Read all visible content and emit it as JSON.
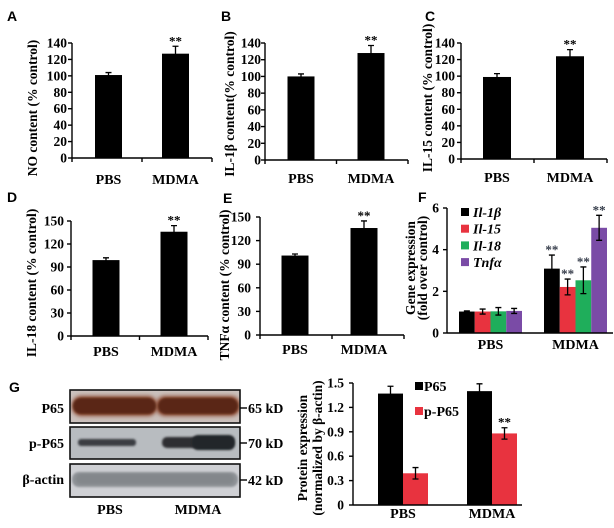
{
  "chart_data": [
    {
      "panel": "A",
      "type": "bar",
      "categories": [
        "PBS",
        "MDMA"
      ],
      "values": [
        101,
        127
      ],
      "errors": [
        3,
        9
      ],
      "significance": [
        "",
        "**"
      ],
      "color": "#000000",
      "ylabel": "NO content (% control)",
      "xlabel": "",
      "ylim": [
        0,
        140
      ],
      "yticks": [
        0,
        20,
        40,
        60,
        80,
        100,
        120,
        140
      ]
    },
    {
      "panel": "B",
      "type": "bar",
      "categories": [
        "PBS",
        "MDMA"
      ],
      "values": [
        100,
        128
      ],
      "errors": [
        3,
        9
      ],
      "significance": [
        "",
        "**"
      ],
      "color": "#000000",
      "ylabel": "IL-1β content(% control)",
      "xlabel": "",
      "ylim": [
        0,
        140
      ],
      "yticks": [
        0,
        20,
        40,
        60,
        80,
        100,
        120,
        140
      ]
    },
    {
      "panel": "C",
      "type": "bar",
      "categories": [
        "PBS",
        "MDMA"
      ],
      "values": [
        99,
        124
      ],
      "errors": [
        4,
        8
      ],
      "significance": [
        "",
        "**"
      ],
      "color": "#000000",
      "ylabel": "IL-15 content (% control)",
      "xlabel": "",
      "ylim": [
        0,
        140
      ],
      "yticks": [
        0,
        20,
        40,
        60,
        80,
        100,
        120,
        140
      ]
    },
    {
      "panel": "D",
      "type": "bar",
      "categories": [
        "PBS",
        "MDMA"
      ],
      "values": [
        99,
        136
      ],
      "errors": [
        3,
        8
      ],
      "significance": [
        "",
        "**"
      ],
      "color": "#000000",
      "ylabel": "IL-18 content (% control)",
      "xlabel": "",
      "ylim": [
        0,
        150
      ],
      "yticks": [
        0,
        30,
        60,
        90,
        120,
        150
      ]
    },
    {
      "panel": "E",
      "type": "bar",
      "categories": [
        "PBS",
        "MDMA"
      ],
      "values": [
        101,
        136
      ],
      "errors": [
        2,
        9
      ],
      "significance": [
        "",
        "**"
      ],
      "color": "#000000",
      "ylabel": "TNFα content (% control)",
      "xlabel": "",
      "ylim": [
        0,
        150
      ],
      "yticks": [
        0,
        30,
        60,
        90,
        120,
        150
      ]
    },
    {
      "panel": "F",
      "type": "bar",
      "categories": [
        "PBS",
        "MDMA"
      ],
      "series": [
        {
          "name": "Il-1β",
          "color": "#000000",
          "values": [
            1.03,
            3.09
          ],
          "errors": [
            0.03,
            0.65
          ],
          "significance": [
            "",
            "**"
          ]
        },
        {
          "name": "Il-15",
          "color": "#e8333f",
          "values": [
            1.03,
            2.21
          ],
          "errors": [
            0.12,
            0.38
          ],
          "significance": [
            "",
            "**"
          ]
        },
        {
          "name": "Il-18",
          "color": "#1fae5b",
          "values": [
            1.04,
            2.53
          ],
          "errors": [
            0.18,
            0.64
          ],
          "significance": [
            "",
            "**"
          ]
        },
        {
          "name": "Tnfα",
          "color": "#7a4ba6",
          "values": [
            1.06,
            5.05
          ],
          "errors": [
            0.12,
            0.6
          ],
          "significance": [
            "",
            "**"
          ]
        }
      ],
      "ylabel": [
        "Gene expression",
        "(fold over control)"
      ],
      "xlabel": "",
      "ylim": [
        0,
        6
      ],
      "yticks": [
        0,
        2,
        4,
        6
      ],
      "legend": "top-left"
    },
    {
      "type": "bar",
      "categories": [
        "PBS",
        "MDMA"
      ],
      "series": [
        {
          "name": "P65",
          "color": "#000000",
          "values": [
            1.37,
            1.4
          ],
          "errors": [
            0.09,
            0.09
          ],
          "significance": [
            "",
            ""
          ]
        },
        {
          "name": "p-P65",
          "color": "#e8333f",
          "values": [
            0.39,
            0.88
          ],
          "errors": [
            0.07,
            0.07
          ],
          "significance": [
            "",
            "**"
          ]
        }
      ],
      "ylabel": [
        "Protein expression",
        "(normalized by β-actin)"
      ],
      "xlabel": "",
      "ylim": [
        0,
        1.5
      ],
      "yticks": [
        0,
        0.3,
        0.6,
        0.9,
        1.2,
        1.5
      ],
      "legend": "top-center"
    }
  ],
  "western_blot": {
    "panel": "G",
    "rows": [
      {
        "protein": "P65",
        "marker": "65 kD"
      },
      {
        "protein": "p-P65",
        "marker": "70 kD"
      },
      {
        "protein": "β-actin",
        "marker": "42 kD"
      }
    ],
    "lanes": [
      "PBS",
      "MDMA"
    ]
  }
}
